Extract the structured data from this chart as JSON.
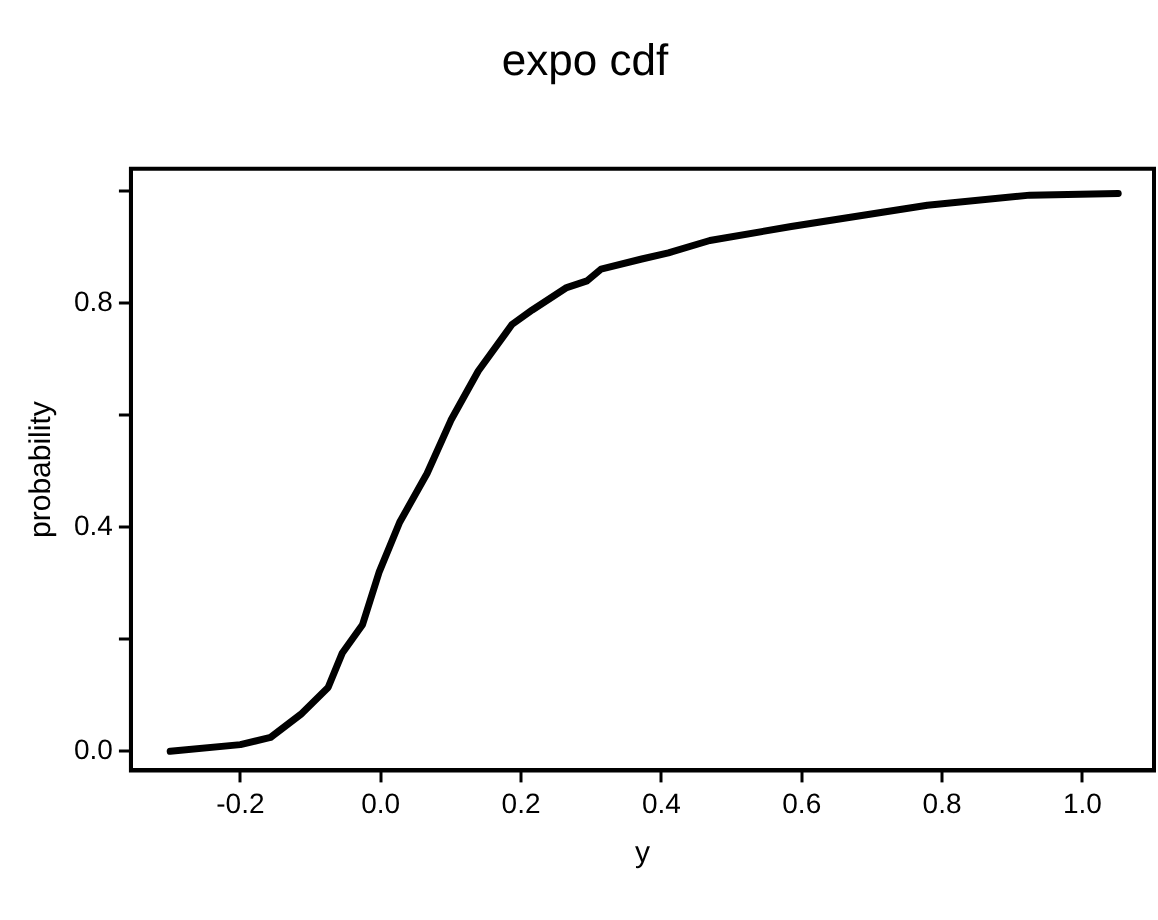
{
  "chart_data": {
    "type": "line",
    "title": "expo cdf",
    "xlabel": "y",
    "ylabel": "probability",
    "xlim": [
      -0.356,
      1.102
    ],
    "ylim": [
      -0.034,
      1.04
    ],
    "xticks": [
      -0.2,
      {
        "value": 0,
        "label": "0.0"
      },
      0.2,
      0.4,
      0.6,
      0.8,
      {
        "value": 1,
        "label": "1.0"
      }
    ],
    "yticks": [
      {
        "value": 0,
        "label": "0.0"
      },
      {
        "value": 0.2,
        "label": null
      },
      0.4,
      {
        "value": 0.6,
        "label": null
      },
      0.8,
      {
        "value": 1,
        "label": null
      }
    ],
    "grid": false,
    "legend": false,
    "marker": "none",
    "line_style": "solid",
    "series": [
      {
        "color": "#000000",
        "x": [
          -0.3,
          -0.2,
          -0.157,
          -0.114,
          -0.075,
          -0.055,
          -0.026,
          -0.002,
          0.027,
          0.066,
          0.1,
          0.139,
          0.187,
          0.216,
          0.265,
          0.294,
          0.314,
          0.372,
          0.41,
          0.469,
          0.585,
          0.779,
          0.925,
          1.051
        ],
        "values": [
          0.0,
          0.012,
          0.025,
          0.066,
          0.114,
          0.175,
          0.226,
          0.321,
          0.409,
          0.496,
          0.591,
          0.679,
          0.762,
          0.788,
          0.828,
          0.84,
          0.861,
          0.879,
          0.89,
          0.912,
          0.937,
          0.975,
          0.993,
          0.996
        ]
      }
    ]
  }
}
